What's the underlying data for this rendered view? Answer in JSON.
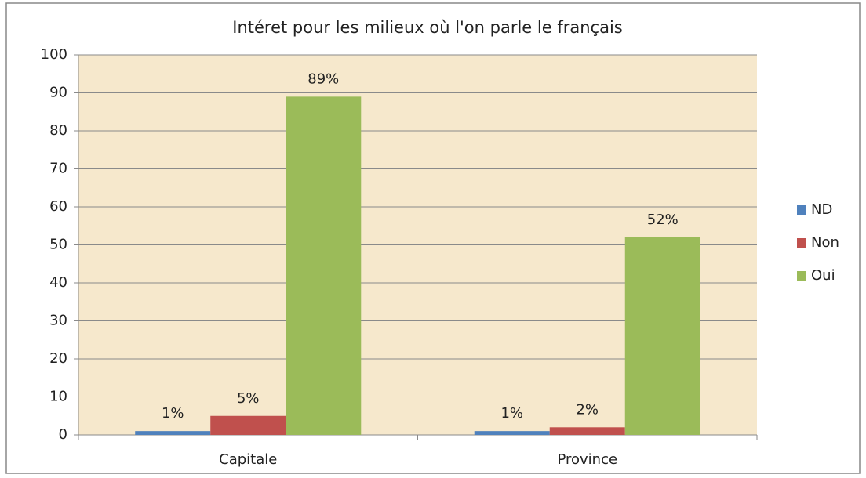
{
  "chart_data": {
    "type": "bar",
    "title": "Intéret pour les milieux où l'on parle le français",
    "categories": [
      "Capitale",
      "Province"
    ],
    "series": [
      {
        "name": "ND",
        "color": "#4f81bd",
        "values": [
          1,
          1
        ],
        "value_labels": [
          "1%",
          "1%"
        ]
      },
      {
        "name": "Non",
        "color": "#c0504d",
        "values": [
          5,
          2
        ],
        "value_labels": [
          "5%",
          "2%"
        ]
      },
      {
        "name": "Oui",
        "color": "#9bbb59",
        "values": [
          89,
          52
        ],
        "value_labels": [
          "89%",
          "52%"
        ]
      }
    ],
    "ylim": [
      0,
      100
    ],
    "yticks": [
      0,
      10,
      20,
      30,
      40,
      50,
      60,
      70,
      80,
      90,
      100
    ],
    "grid": true,
    "legend": "right"
  }
}
